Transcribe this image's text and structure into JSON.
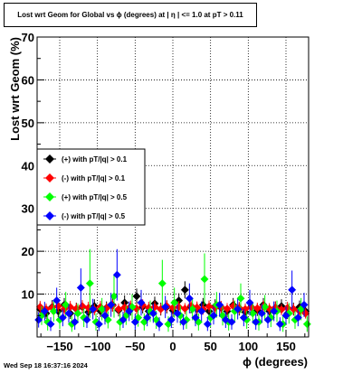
{
  "chart_data": {
    "type": "scatter",
    "title": "Lost wrt Geom for Global vs ϕ (degrees) at |  η | <= 1.0 at pT > 0.11",
    "xlabel": "ϕ (degrees)",
    "ylabel": "Lost wrt Geom (%)",
    "xlim": [
      -180,
      180
    ],
    "ylim": [
      0,
      70
    ],
    "x_ticks": [
      -150,
      -100,
      -50,
      0,
      50,
      100,
      150
    ],
    "x_tick_labels": [
      "−150",
      "−100",
      "−50",
      "0",
      "50",
      "100",
      "150"
    ],
    "y_ticks": [
      10,
      20,
      30,
      40,
      50,
      60,
      70
    ],
    "y_tick_labels": [
      "10",
      "20",
      "30",
      "40",
      "50",
      "60",
      "70"
    ],
    "grid": true,
    "legend_position": "left-middle",
    "series": [
      {
        "name": "(+) with pT/|q| > 0.1",
        "color": "#000000",
        "points": [
          [
            -176,
            6.5,
            1.5
          ],
          [
            -168,
            5.5,
            1.3
          ],
          [
            -160,
            7.0,
            1.6
          ],
          [
            -152,
            6.0,
            1.4
          ],
          [
            -144,
            7.5,
            1.6
          ],
          [
            -136,
            5.5,
            1.3
          ],
          [
            -128,
            6.5,
            1.5
          ],
          [
            -120,
            7.0,
            1.5
          ],
          [
            -112,
            5.8,
            1.4
          ],
          [
            -104,
            7.2,
            1.6
          ],
          [
            -96,
            6.0,
            1.4
          ],
          [
            -88,
            6.8,
            1.5
          ],
          [
            -80,
            7.5,
            1.6
          ],
          [
            -72,
            6.2,
            1.4
          ],
          [
            -64,
            8.0,
            1.7
          ],
          [
            -56,
            6.5,
            1.5
          ],
          [
            -48,
            9.5,
            1.8
          ],
          [
            -40,
            7.0,
            1.5
          ],
          [
            -32,
            6.0,
            1.4
          ],
          [
            -24,
            7.8,
            1.6
          ],
          [
            -16,
            6.5,
            1.5
          ],
          [
            -8,
            7.0,
            1.5
          ],
          [
            0,
            6.2,
            1.4
          ],
          [
            8,
            8.5,
            1.7
          ],
          [
            16,
            11.0,
            2.0
          ],
          [
            24,
            7.0,
            1.5
          ],
          [
            32,
            6.5,
            1.5
          ],
          [
            40,
            7.5,
            1.6
          ],
          [
            48,
            6.0,
            1.4
          ],
          [
            56,
            7.2,
            1.6
          ],
          [
            64,
            6.8,
            1.5
          ],
          [
            72,
            6.0,
            1.4
          ],
          [
            80,
            7.5,
            1.6
          ],
          [
            88,
            6.5,
            1.5
          ],
          [
            96,
            5.8,
            1.4
          ],
          [
            104,
            7.0,
            1.5
          ],
          [
            112,
            6.3,
            1.4
          ],
          [
            120,
            7.5,
            1.6
          ],
          [
            128,
            6.0,
            1.4
          ],
          [
            136,
            6.8,
            1.5
          ],
          [
            144,
            7.2,
            1.6
          ],
          [
            152,
            5.5,
            1.3
          ],
          [
            160,
            6.5,
            1.5
          ],
          [
            168,
            7.0,
            1.5
          ],
          [
            176,
            6.0,
            1.4
          ]
        ]
      },
      {
        "name": "(-) with pT/|q| > 0.1",
        "color": "#ff0000",
        "points": [
          [
            -176,
            7.0,
            1.4
          ],
          [
            -168,
            6.5,
            1.3
          ],
          [
            -160,
            6.8,
            1.4
          ],
          [
            -152,
            7.2,
            1.4
          ],
          [
            -144,
            6.5,
            1.3
          ],
          [
            -136,
            7.0,
            1.4
          ],
          [
            -128,
            6.6,
            1.3
          ],
          [
            -120,
            7.2,
            1.4
          ],
          [
            -112,
            6.8,
            1.4
          ],
          [
            -104,
            6.4,
            1.3
          ],
          [
            -96,
            7.0,
            1.4
          ],
          [
            -88,
            6.7,
            1.3
          ],
          [
            -80,
            7.3,
            1.4
          ],
          [
            -72,
            6.5,
            1.3
          ],
          [
            -64,
            6.9,
            1.4
          ],
          [
            -56,
            7.1,
            1.4
          ],
          [
            -48,
            6.6,
            1.3
          ],
          [
            -40,
            7.4,
            1.4
          ],
          [
            -32,
            6.8,
            1.4
          ],
          [
            -24,
            7.0,
            1.4
          ],
          [
            -16,
            6.5,
            1.3
          ],
          [
            -8,
            7.2,
            1.4
          ],
          [
            0,
            6.8,
            1.4
          ],
          [
            8,
            7.0,
            1.4
          ],
          [
            16,
            6.6,
            1.3
          ],
          [
            24,
            7.3,
            1.4
          ],
          [
            32,
            6.9,
            1.4
          ],
          [
            40,
            6.5,
            1.3
          ],
          [
            48,
            7.1,
            1.4
          ],
          [
            56,
            6.8,
            1.4
          ],
          [
            64,
            7.0,
            1.4
          ],
          [
            72,
            6.6,
            1.3
          ],
          [
            80,
            7.2,
            1.4
          ],
          [
            88,
            6.8,
            1.4
          ],
          [
            96,
            6.5,
            1.3
          ],
          [
            104,
            7.0,
            1.4
          ],
          [
            112,
            6.7,
            1.3
          ],
          [
            120,
            7.1,
            1.4
          ],
          [
            128,
            6.6,
            1.3
          ],
          [
            136,
            6.9,
            1.4
          ],
          [
            144,
            6.4,
            1.3
          ],
          [
            152,
            6.8,
            1.4
          ],
          [
            160,
            6.5,
            1.3
          ],
          [
            168,
            6.0,
            1.3
          ],
          [
            176,
            5.5,
            1.2
          ]
        ]
      },
      {
        "name": "(+) with pT/|q| > 0.5",
        "color": "#00ff00",
        "points": [
          [
            -174,
            5.0,
            2.2
          ],
          [
            -166,
            3.5,
            2.0
          ],
          [
            -158,
            6.0,
            2.4
          ],
          [
            -150,
            4.0,
            2.1
          ],
          [
            -142,
            7.5,
            3.0
          ],
          [
            -134,
            3.0,
            1.8
          ],
          [
            -126,
            5.5,
            2.3
          ],
          [
            -118,
            4.5,
            2.2
          ],
          [
            -110,
            12.5,
            8.0
          ],
          [
            -102,
            3.5,
            2.0
          ],
          [
            -94,
            6.5,
            2.6
          ],
          [
            -86,
            4.0,
            2.0
          ],
          [
            -78,
            9.5,
            5.0
          ],
          [
            -70,
            3.5,
            2.0
          ],
          [
            -62,
            5.0,
            2.2
          ],
          [
            -54,
            7.0,
            3.0
          ],
          [
            -46,
            4.5,
            2.1
          ],
          [
            -38,
            3.5,
            2.0
          ],
          [
            -30,
            6.0,
            2.5
          ],
          [
            -22,
            4.0,
            2.1
          ],
          [
            -14,
            12.5,
            5.5
          ],
          [
            -6,
            3.0,
            1.8
          ],
          [
            2,
            8.0,
            3.5
          ],
          [
            10,
            5.0,
            2.3
          ],
          [
            18,
            4.0,
            2.1
          ],
          [
            26,
            6.5,
            2.6
          ],
          [
            34,
            3.5,
            2.0
          ],
          [
            42,
            13.5,
            6.0
          ],
          [
            50,
            4.5,
            2.2
          ],
          [
            58,
            7.5,
            3.0
          ],
          [
            66,
            5.0,
            2.3
          ],
          [
            74,
            3.5,
            2.0
          ],
          [
            82,
            6.0,
            2.5
          ],
          [
            90,
            9.0,
            3.5
          ],
          [
            98,
            4.0,
            2.1
          ],
          [
            106,
            5.5,
            2.4
          ],
          [
            114,
            3.5,
            2.0
          ],
          [
            122,
            7.0,
            2.8
          ],
          [
            130,
            4.5,
            2.2
          ],
          [
            138,
            6.0,
            2.5
          ],
          [
            146,
            3.0,
            1.8
          ],
          [
            154,
            5.5,
            2.4
          ],
          [
            162,
            4.0,
            2.1
          ],
          [
            170,
            6.5,
            2.6
          ],
          [
            178,
            3.0,
            1.8
          ]
        ]
      },
      {
        "name": "(-) with pT/|q| > 0.5",
        "color": "#0000ff",
        "points": [
          [
            -178,
            4.0,
            1.8
          ],
          [
            -170,
            6.0,
            2.2
          ],
          [
            -162,
            3.0,
            1.6
          ],
          [
            -154,
            8.5,
            3.0
          ],
          [
            -146,
            4.5,
            2.0
          ],
          [
            -138,
            5.5,
            2.2
          ],
          [
            -130,
            3.5,
            1.8
          ],
          [
            -122,
            11.5,
            4.5
          ],
          [
            -114,
            4.0,
            1.9
          ],
          [
            -106,
            6.5,
            2.4
          ],
          [
            -98,
            3.0,
            1.6
          ],
          [
            -90,
            5.0,
            2.1
          ],
          [
            -82,
            7.5,
            2.8
          ],
          [
            -74,
            14.5,
            6.0
          ],
          [
            -66,
            4.0,
            1.9
          ],
          [
            -58,
            6.0,
            2.3
          ],
          [
            -50,
            3.5,
            1.8
          ],
          [
            -42,
            8.0,
            3.0
          ],
          [
            -34,
            4.5,
            2.0
          ],
          [
            -26,
            5.5,
            2.2
          ],
          [
            -18,
            3.0,
            1.6
          ],
          [
            -10,
            7.0,
            2.6
          ],
          [
            -2,
            4.0,
            1.9
          ],
          [
            6,
            5.5,
            2.2
          ],
          [
            14,
            3.5,
            1.8
          ],
          [
            22,
            9.0,
            3.5
          ],
          [
            30,
            4.5,
            2.0
          ],
          [
            38,
            6.0,
            2.3
          ],
          [
            46,
            3.0,
            1.6
          ],
          [
            54,
            5.0,
            2.1
          ],
          [
            62,
            7.5,
            2.8
          ],
          [
            70,
            4.0,
            1.9
          ],
          [
            78,
            3.5,
            1.8
          ],
          [
            86,
            6.5,
            2.4
          ],
          [
            94,
            4.5,
            2.0
          ],
          [
            102,
            8.0,
            3.0
          ],
          [
            110,
            3.5,
            1.8
          ],
          [
            118,
            5.5,
            2.2
          ],
          [
            126,
            4.0,
            1.9
          ],
          [
            134,
            6.0,
            2.3
          ],
          [
            142,
            3.0,
            1.6
          ],
          [
            150,
            5.0,
            2.1
          ],
          [
            158,
            11.0,
            4.5
          ],
          [
            166,
            4.5,
            2.0
          ],
          [
            174,
            7.5,
            2.8
          ]
        ]
      }
    ]
  },
  "footer": {
    "timestamp": "Wed Sep 18 16:37:16 2024"
  }
}
